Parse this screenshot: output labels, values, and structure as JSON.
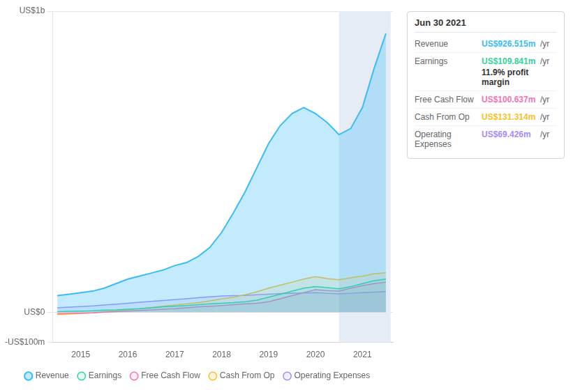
{
  "chart_data": {
    "type": "line",
    "x": [
      2014.5,
      2014.75,
      2015.0,
      2015.25,
      2015.5,
      2015.75,
      2016.0,
      2016.25,
      2016.5,
      2016.75,
      2017.0,
      2017.25,
      2017.5,
      2017.75,
      2018.0,
      2018.25,
      2018.5,
      2018.75,
      2019.0,
      2019.25,
      2019.5,
      2019.75,
      2020.0,
      2020.25,
      2020.5,
      2020.75,
      2021.0,
      2021.25,
      2021.5
    ],
    "series": [
      {
        "name": "Revenue",
        "color": "#38bdf8",
        "values": [
          55,
          60,
          65,
          70,
          80,
          95,
          110,
          120,
          130,
          140,
          155,
          165,
          185,
          215,
          265,
          330,
          400,
          480,
          560,
          620,
          660,
          680,
          660,
          630,
          590,
          610,
          680,
          810,
          926
        ]
      },
      {
        "name": "Earnings",
        "color": "#34d399",
        "values": [
          2,
          3,
          4,
          5,
          7,
          8,
          10,
          12,
          15,
          18,
          20,
          22,
          25,
          28,
          30,
          32,
          35,
          40,
          50,
          60,
          70,
          80,
          85,
          82,
          78,
          85,
          95,
          105,
          110
        ]
      },
      {
        "name": "Free Cash Flow",
        "color": "#f472b6",
        "values": [
          -5,
          -4,
          -3,
          -2,
          0,
          2,
          4,
          6,
          8,
          10,
          12,
          15,
          18,
          20,
          22,
          25,
          28,
          30,
          35,
          45,
          55,
          65,
          75,
          72,
          70,
          80,
          88,
          95,
          100
        ]
      },
      {
        "name": "Cash From Op",
        "color": "#fbbf24",
        "values": [
          -8,
          -6,
          -4,
          -2,
          2,
          5,
          8,
          12,
          16,
          20,
          24,
          28,
          32,
          38,
          44,
          50,
          58,
          68,
          80,
          90,
          100,
          110,
          118,
          112,
          108,
          115,
          120,
          128,
          131
        ]
      },
      {
        "name": "Operating Expenses",
        "color": "#a78bfa",
        "values": [
          15,
          17,
          19,
          21,
          24,
          27,
          30,
          33,
          36,
          39,
          42,
          45,
          48,
          51,
          54,
          55,
          56,
          58,
          60,
          62,
          63,
          64,
          65,
          63,
          61,
          63,
          65,
          67,
          69
        ]
      }
    ],
    "xlim": [
      2014.4,
      2021.65
    ],
    "xticks": [
      2015,
      2016,
      2017,
      2018,
      2019,
      2020,
      2021
    ],
    "ylim": [
      -100,
      1000
    ],
    "yticks": [
      {
        "value": -100,
        "label": "-US$100m"
      },
      {
        "value": 0,
        "label": "US$0"
      },
      {
        "value": 1000,
        "label": "US$1b"
      }
    ],
    "grid": true,
    "legend": "bottom",
    "highlight": {
      "x": [
        2020.5,
        2021.6
      ],
      "color": "#e6ecf5"
    },
    "annotation": {
      "title": "Jun 30 2021",
      "rows": [
        {
          "label": "Revenue",
          "value": "US$926.515m",
          "unit": "/yr",
          "color": "#38bdf8"
        },
        {
          "label": "Earnings",
          "value": "US$109.841m",
          "unit": "/yr",
          "color": "#34d399",
          "note": "11.9% profit margin"
        },
        {
          "label": "Free Cash Flow",
          "value": "US$100.637m",
          "unit": "/yr",
          "color": "#f472b6"
        },
        {
          "label": "Cash From Op",
          "value": "US$131.314m",
          "unit": "/yr",
          "color": "#fbbf24"
        },
        {
          "label": "Operating Expenses",
          "value": "US$69.426m",
          "unit": "/yr",
          "color": "#a78bfa"
        }
      ]
    }
  }
}
